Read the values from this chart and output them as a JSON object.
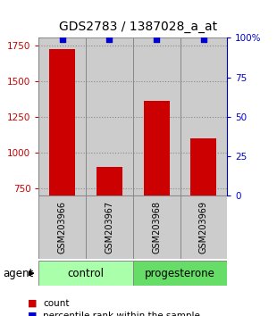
{
  "title": "GDS2783 / 1387028_a_at",
  "samples": [
    "GSM203966",
    "GSM203967",
    "GSM203968",
    "GSM203969"
  ],
  "counts": [
    1720,
    900,
    1360,
    1100
  ],
  "percentiles": [
    99,
    99,
    99,
    99
  ],
  "ylim_left": [
    700,
    1800
  ],
  "ylim_right": [
    0,
    100
  ],
  "yticks_left": [
    750,
    1000,
    1250,
    1500,
    1750
  ],
  "yticks_right": [
    0,
    25,
    50,
    75,
    100
  ],
  "bar_color": "#cc0000",
  "dot_color": "#0000cc",
  "bar_width": 0.55,
  "groups": [
    {
      "label": "control",
      "indices": [
        0,
        1
      ],
      "color": "#aaffaa"
    },
    {
      "label": "progesterone",
      "indices": [
        2,
        3
      ],
      "color": "#66dd66"
    }
  ],
  "agent_label": "agent",
  "legend_count_label": "count",
  "legend_pct_label": "percentile rank within the sample",
  "left_axis_color": "#cc0000",
  "right_axis_color": "#0000cc",
  "title_fontsize": 10,
  "tick_fontsize": 7.5,
  "sample_fontsize": 7,
  "label_fontsize": 7.5,
  "group_fontsize": 8.5,
  "gray_box_color": "#cccccc",
  "spine_color": "#888888",
  "baseline": 700
}
